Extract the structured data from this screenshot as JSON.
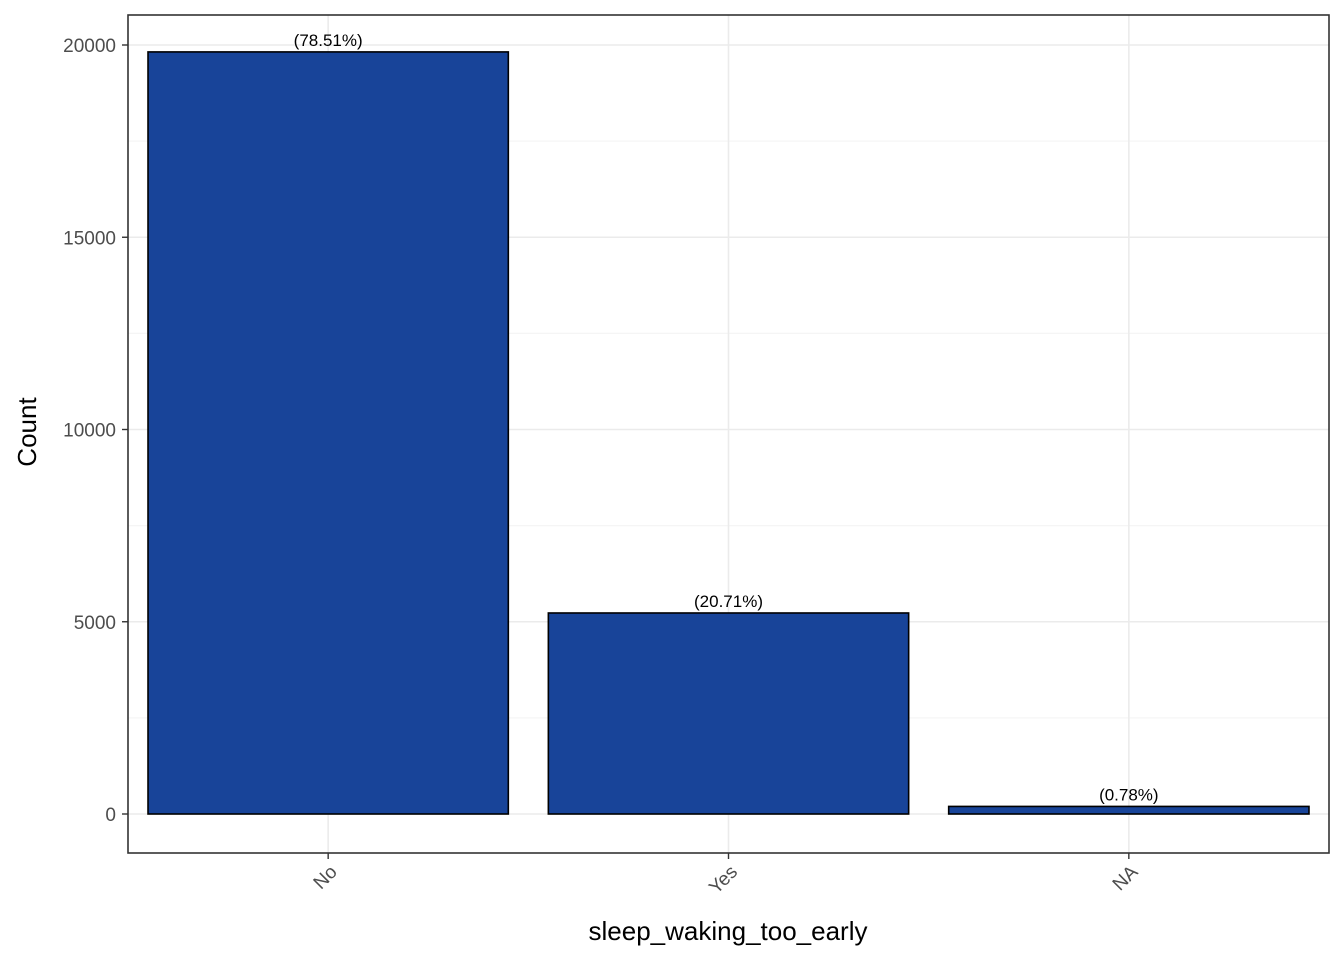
{
  "chart_data": {
    "type": "bar",
    "categories": [
      "No",
      "Yes",
      "NA"
    ],
    "values": [
      19820,
      5228,
      197
    ],
    "labels": [
      "(78.51%)",
      "(20.71%)",
      "(0.78%)"
    ],
    "xlabel": "sleep_waking_too_early",
    "ylabel": "Count",
    "ylim": [
      -1000,
      20800
    ],
    "yticks": [
      0,
      5000,
      10000,
      15000,
      20000
    ],
    "ytick_labels": [
      "0",
      "5000",
      "10000",
      "15000",
      "20000"
    ],
    "grid": true,
    "legend": "none",
    "colors": {
      "bar_fill": "#184499",
      "bar_stroke": "#000000",
      "grid_major": "#ebebeb",
      "grid_minor": "#f5f5f5",
      "panel_border": "#333333"
    }
  }
}
